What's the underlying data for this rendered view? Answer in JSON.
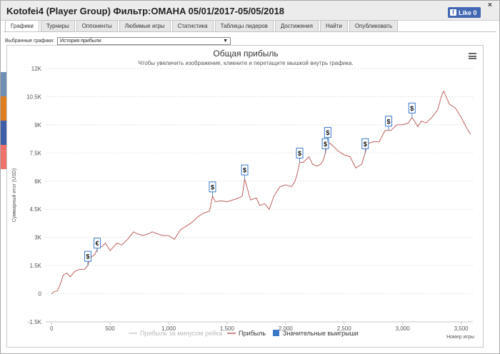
{
  "window": {
    "title": "Kotofei4 (Player Group) Фильтр:OMAHA 05/01/2017-05/05/2018",
    "like_label": "Like 0",
    "close_glyph": "×"
  },
  "tabs": [
    {
      "label": "Графики",
      "active": true
    },
    {
      "label": "Турниры",
      "active": false
    },
    {
      "label": "Оппоненты",
      "active": false
    },
    {
      "label": "Любимые игры",
      "active": false
    },
    {
      "label": "Статистика",
      "active": false
    },
    {
      "label": "Таблицы лидеров",
      "active": false
    },
    {
      "label": "Достижения",
      "active": false
    },
    {
      "label": "Найти",
      "active": false
    },
    {
      "label": "Опубликовать",
      "active": false
    }
  ],
  "selector": {
    "label": "Выбранные графики:",
    "value": "История прибыли"
  },
  "side_colors": [
    "#6f8fb5",
    "#e07f1f",
    "#3f5fa8",
    "#f0706a"
  ],
  "chart_data": {
    "type": "line",
    "title": "Общая прибыль",
    "subtitle": "Чтобы увеличить изображение, кликните и перетащите мышкой внутрь графика.",
    "ylabel": "Суммарный итог (USD)",
    "xlabel": "Номер игры",
    "ylim": [
      -1500,
      12000
    ],
    "xlim": [
      -50,
      3600
    ],
    "y_ticks": [
      -1500,
      0,
      1500,
      3000,
      4500,
      6000,
      7500,
      9000,
      10500,
      12000
    ],
    "y_tick_labels": [
      "-1.5K",
      "0",
      "1.5K",
      "3K",
      "4.5K",
      "6K",
      "7.5K",
      "9K",
      "10.5K",
      "12K"
    ],
    "x_ticks": [
      0,
      500,
      1000,
      1500,
      2000,
      2500,
      3000,
      3500
    ],
    "x_tick_labels": [
      "0",
      "500",
      "1,000",
      "1,500",
      "2,000",
      "2,500",
      "3,000",
      "3,500"
    ],
    "grid": true,
    "legend_position": "bottom",
    "legend": [
      {
        "name": "Прибыль за минусом рейка",
        "color": "#cccccc",
        "kind": "line"
      },
      {
        "name": "Прибыль",
        "color": "#c06060",
        "kind": "line"
      },
      {
        "name": "Значительные выигрыши",
        "color": "#3a78c8",
        "kind": "box"
      }
    ],
    "series": [
      {
        "name": "Прибыль",
        "color": "#c06060",
        "points": [
          [
            0,
            0
          ],
          [
            20,
            100
          ],
          [
            50,
            150
          ],
          [
            80,
            600
          ],
          [
            100,
            1000
          ],
          [
            130,
            1100
          ],
          [
            160,
            900
          ],
          [
            200,
            1200
          ],
          [
            240,
            1300
          ],
          [
            280,
            1300
          ],
          [
            310,
            1500
          ],
          [
            330,
            1900
          ],
          [
            370,
            2100
          ],
          [
            400,
            2500
          ],
          [
            430,
            2500
          ],
          [
            460,
            2700
          ],
          [
            500,
            2300
          ],
          [
            560,
            2700
          ],
          [
            600,
            2600
          ],
          [
            650,
            2900
          ],
          [
            700,
            3300
          ],
          [
            730,
            3200
          ],
          [
            780,
            3100
          ],
          [
            830,
            3200
          ],
          [
            860,
            3300
          ],
          [
            900,
            3200
          ],
          [
            950,
            3100
          ],
          [
            1000,
            3100
          ],
          [
            1050,
            2900
          ],
          [
            1100,
            3400
          ],
          [
            1150,
            3600
          ],
          [
            1200,
            3800
          ],
          [
            1250,
            4100
          ],
          [
            1300,
            4300
          ],
          [
            1350,
            4400
          ],
          [
            1375,
            5200
          ],
          [
            1400,
            4900
          ],
          [
            1450,
            4950
          ],
          [
            1500,
            4900
          ],
          [
            1550,
            5000
          ],
          [
            1600,
            5100
          ],
          [
            1630,
            5200
          ],
          [
            1650,
            6100
          ],
          [
            1660,
            5900
          ],
          [
            1700,
            5000
          ],
          [
            1750,
            5100
          ],
          [
            1780,
            4700
          ],
          [
            1820,
            4800
          ],
          [
            1860,
            4500
          ],
          [
            1900,
            5200
          ],
          [
            1950,
            5700
          ],
          [
            2000,
            5800
          ],
          [
            2050,
            5700
          ],
          [
            2080,
            6000
          ],
          [
            2100,
            6400
          ],
          [
            2120,
            7000
          ],
          [
            2150,
            7000
          ],
          [
            2200,
            7300
          ],
          [
            2230,
            6900
          ],
          [
            2270,
            6800
          ],
          [
            2300,
            6900
          ],
          [
            2320,
            7100
          ],
          [
            2340,
            7500
          ],
          [
            2360,
            8100
          ],
          [
            2400,
            7900
          ],
          [
            2450,
            7600
          ],
          [
            2500,
            7400
          ],
          [
            2550,
            7300
          ],
          [
            2600,
            6700
          ],
          [
            2650,
            6900
          ],
          [
            2680,
            7500
          ],
          [
            2700,
            8000
          ],
          [
            2750,
            8100
          ],
          [
            2800,
            8100
          ],
          [
            2850,
            8700
          ],
          [
            2900,
            8700
          ],
          [
            2950,
            9000
          ],
          [
            3000,
            9000
          ],
          [
            3050,
            9100
          ],
          [
            3080,
            9400
          ],
          [
            3100,
            9200
          ],
          [
            3130,
            8900
          ],
          [
            3160,
            9200
          ],
          [
            3200,
            9100
          ],
          [
            3250,
            9400
          ],
          [
            3300,
            9800
          ],
          [
            3330,
            10500
          ],
          [
            3350,
            10800
          ],
          [
            3400,
            10100
          ],
          [
            3450,
            9900
          ],
          [
            3500,
            9400
          ],
          [
            3550,
            8800
          ],
          [
            3580,
            8500
          ]
        ]
      }
    ],
    "markers": [
      {
        "x": 310,
        "y": 1500,
        "symbol": "$"
      },
      {
        "x": 390,
        "y": 2200,
        "symbol": "€"
      },
      {
        "x": 1375,
        "y": 5200,
        "symbol": "$"
      },
      {
        "x": 1650,
        "y": 6100,
        "symbol": "$"
      },
      {
        "x": 2120,
        "y": 7000,
        "symbol": "$"
      },
      {
        "x": 2340,
        "y": 7500,
        "symbol": "$"
      },
      {
        "x": 2360,
        "y": 8100,
        "symbol": "$"
      },
      {
        "x": 2680,
        "y": 7500,
        "symbol": "$"
      },
      {
        "x": 2880,
        "y": 8700,
        "symbol": "$"
      },
      {
        "x": 3080,
        "y": 9400,
        "symbol": "$"
      }
    ]
  }
}
